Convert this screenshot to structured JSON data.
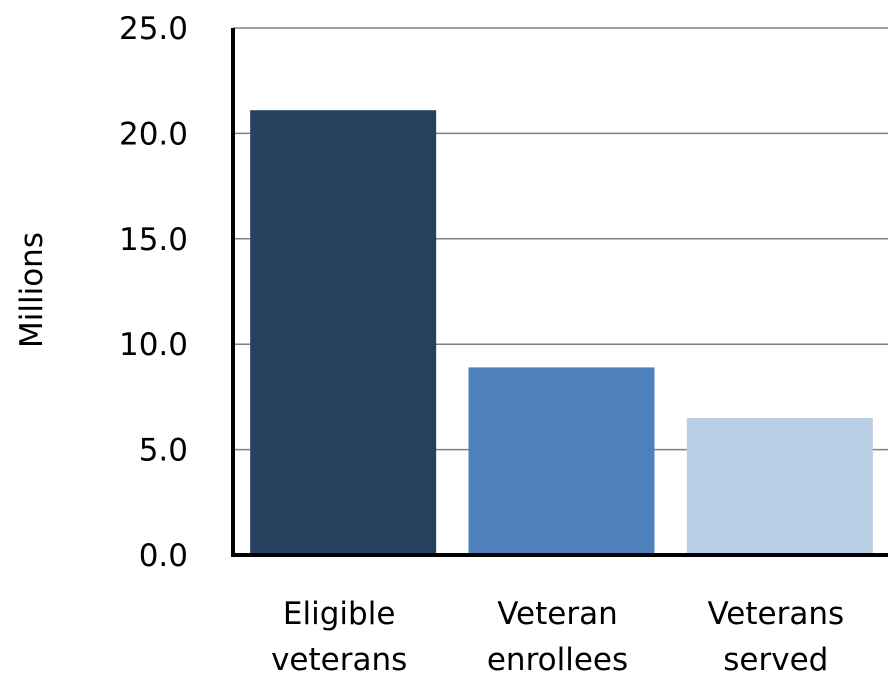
{
  "chart_data": {
    "type": "bar",
    "categories": [
      [
        "Eligible",
        "veterans"
      ],
      [
        "Veteran",
        "enrollees"
      ],
      [
        "Veterans",
        "served"
      ]
    ],
    "values": [
      21.1,
      8.9,
      6.5
    ],
    "bar_colors": [
      "#27415F",
      "#4F81BD",
      "#B9CDE5"
    ],
    "ylabel": "Millions",
    "ylim": [
      0,
      25
    ],
    "yticks": [
      0,
      5,
      10,
      15,
      20,
      25
    ],
    "ytick_labels": [
      "0.0",
      "5.0",
      "10.0",
      "15.0",
      "20.0",
      "25.0"
    ],
    "grid": true,
    "gridline_color": "#808080",
    "axis_color": "#000000"
  }
}
